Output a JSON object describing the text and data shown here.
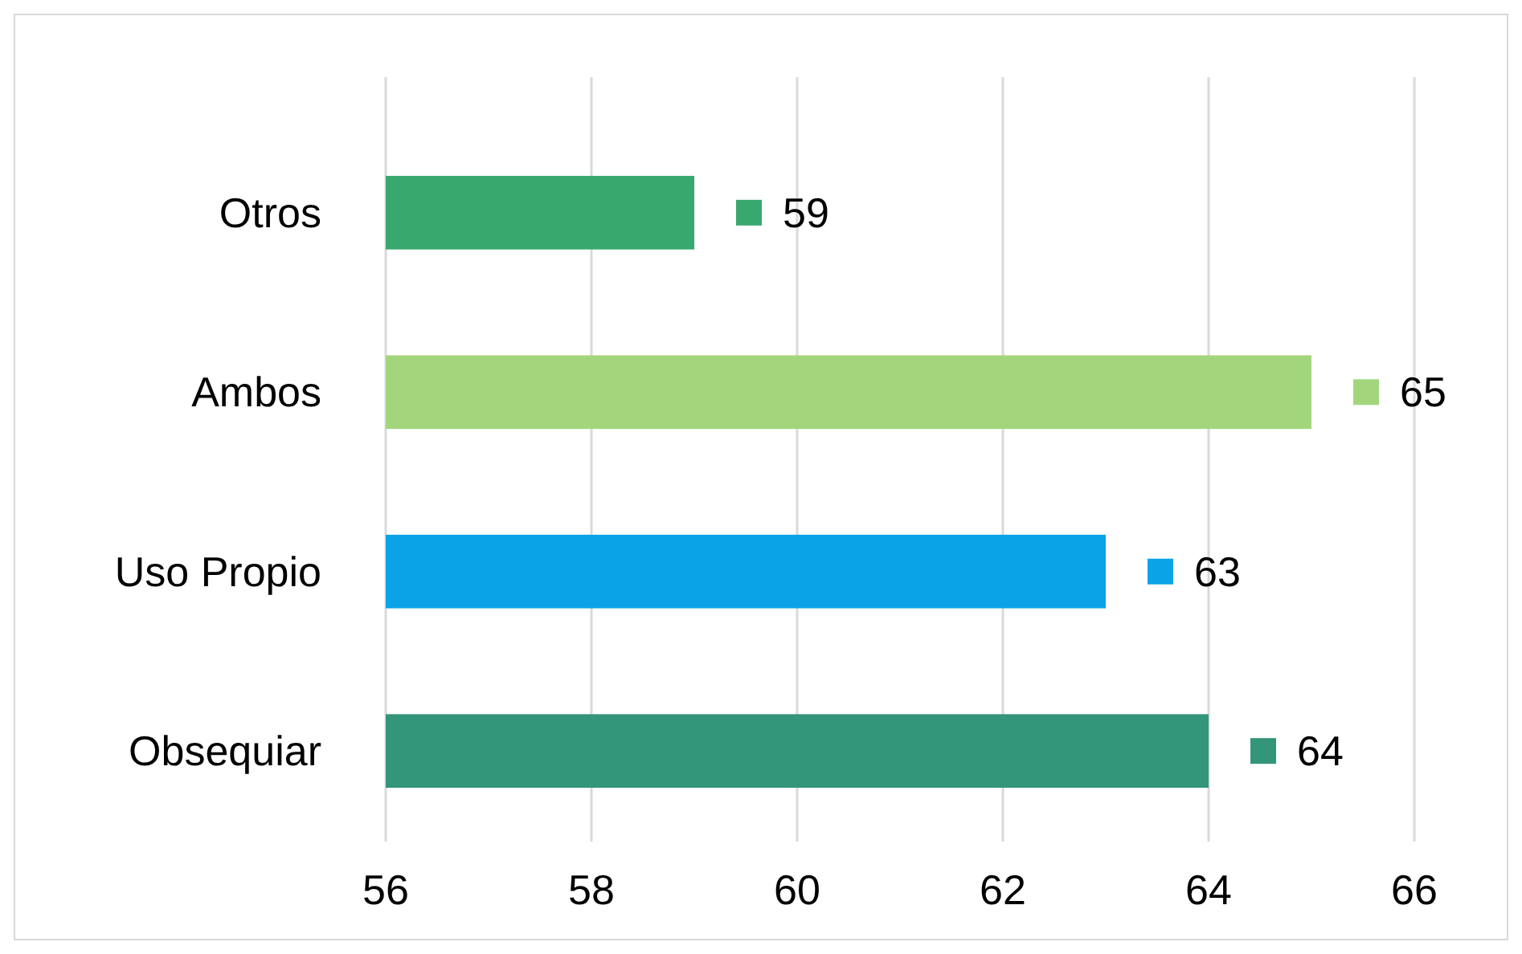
{
  "chart_data": {
    "type": "bar",
    "orientation": "horizontal",
    "categories": [
      "Otros",
      "Ambos",
      "Uso Propio",
      "Obsequiar"
    ],
    "values": [
      59,
      65,
      63,
      64
    ],
    "colors": [
      "#38a86f",
      "#a3d67c",
      "#0ba3e8",
      "#33957a"
    ],
    "xlim": [
      56,
      66
    ],
    "xticks": [
      56,
      58,
      60,
      62,
      64,
      66
    ],
    "grid": "x",
    "data_labels": true
  }
}
